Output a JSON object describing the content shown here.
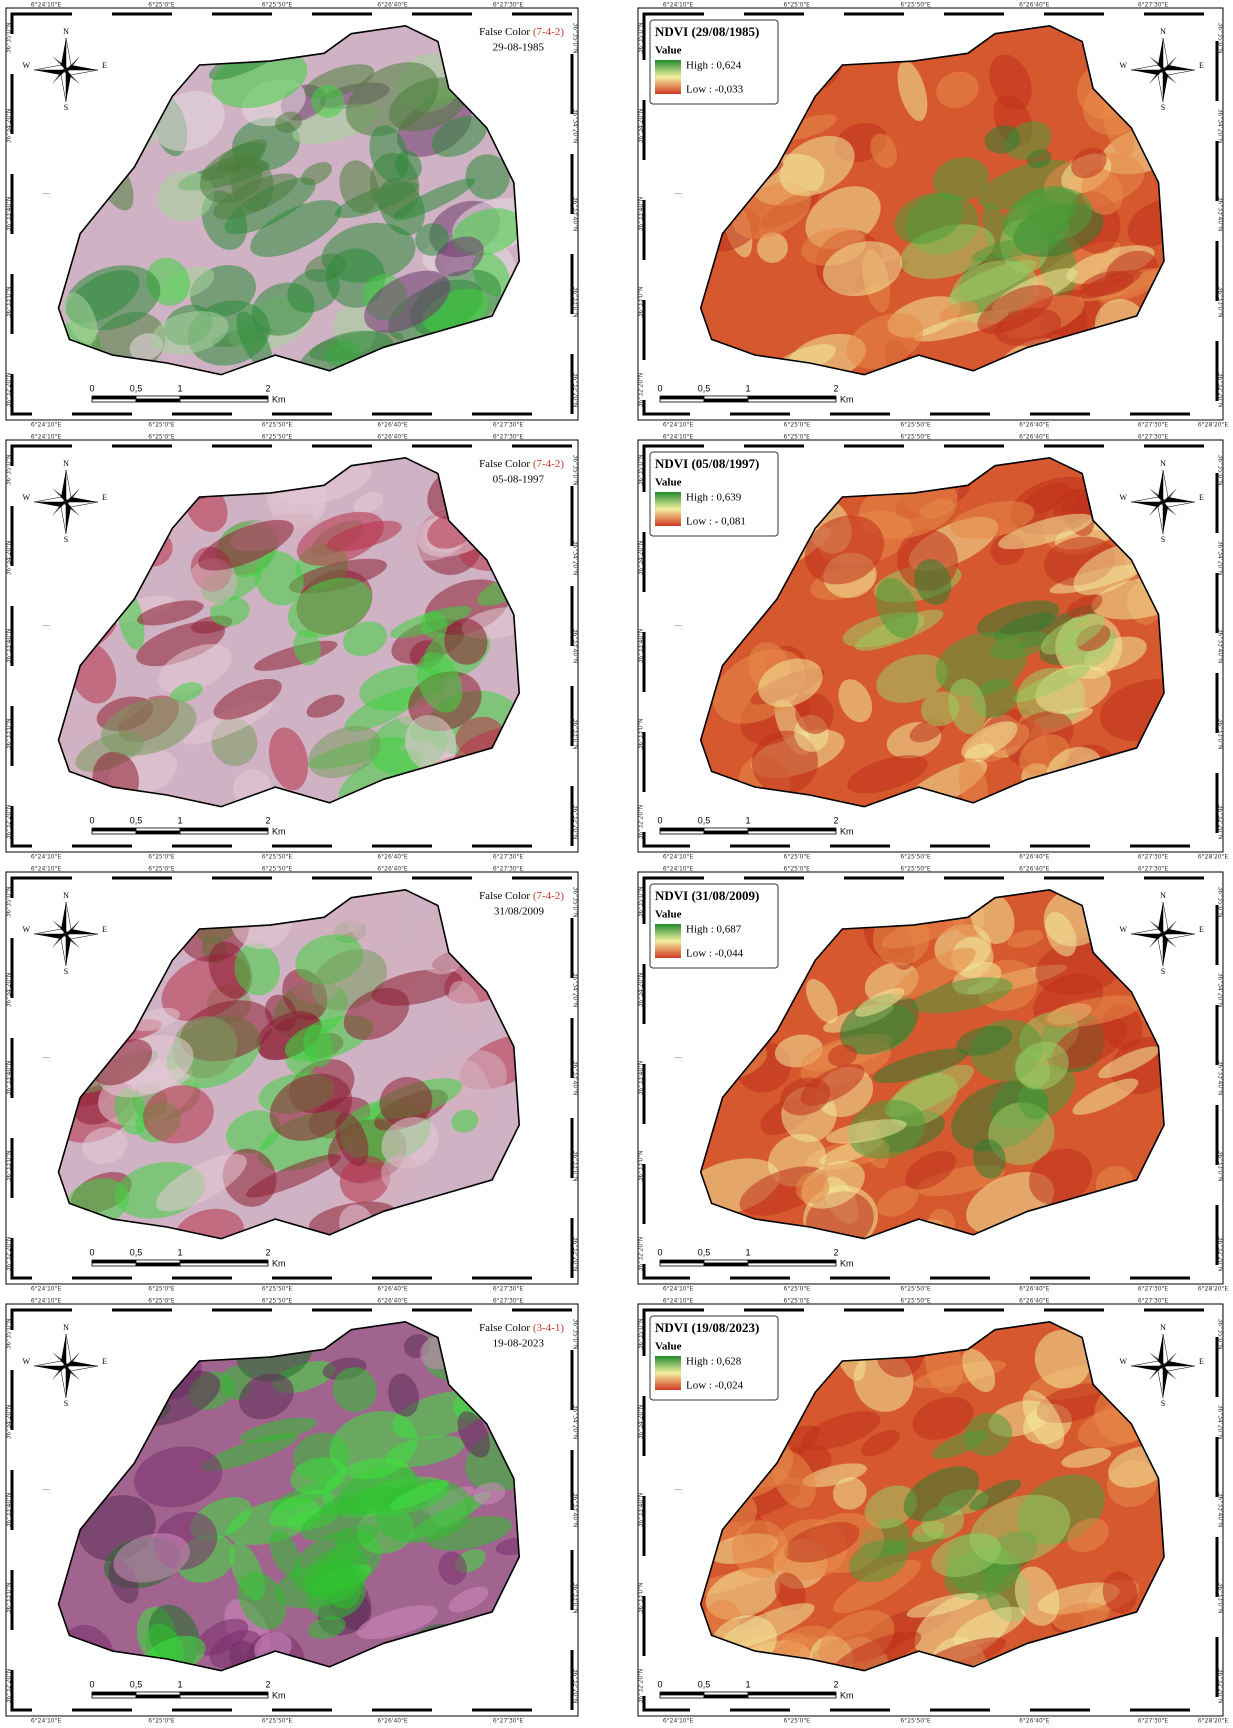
{
  "graticule": {
    "lon": [
      "6°24'10\"E",
      "6°25'0\"E",
      "6°25'50\"E",
      "6°26'40\"E",
      "6°27'30\"E"
    ],
    "lon_extra": "6°28'20\"E",
    "lat": [
      "36°35'0\"N",
      "36°34'20\"N",
      "36°33'40\"N",
      "36°33'0\"N",
      "36°32'20\"N"
    ]
  },
  "north_arrow": {
    "n": "N",
    "s": "S",
    "e": "E",
    "w": "W"
  },
  "scale_bar": {
    "ticks": [
      "0",
      "0,5",
      "1",
      "2"
    ],
    "unit": "Km"
  },
  "panels": [
    {
      "kind": "false_color",
      "label": "False Color",
      "bands": "(7-4-2)",
      "date": "29-08-1985"
    },
    {
      "kind": "ndvi",
      "title": "NDVI (29/08/1985)",
      "legend_title": "Value",
      "high": "High : 0,624",
      "low": "Low : -0,033"
    },
    {
      "kind": "false_color",
      "label": "False Color",
      "bands": "(7-4-2)",
      "date": "05-08-1997"
    },
    {
      "kind": "ndvi",
      "title": "NDVI (05/08/1997)",
      "legend_title": "Value",
      "high": "High : 0,639",
      "low": "Low : - 0,081"
    },
    {
      "kind": "false_color",
      "label": "False Color",
      "bands": "(7-4-2)",
      "date": "31/08/2009"
    },
    {
      "kind": "ndvi",
      "title": "NDVI (31/08/2009)",
      "legend_title": "Value",
      "high": "High : 0,687",
      "low": "Low : -0,044"
    },
    {
      "kind": "false_color",
      "label": "False Color",
      "bands": "(3-4-1)",
      "date": "19-08-2023"
    },
    {
      "kind": "ndvi",
      "title": "NDVI (19/08/2023)",
      "legend_title": "Value",
      "high": "High : 0,628",
      "low": "Low : -0,024"
    }
  ]
}
